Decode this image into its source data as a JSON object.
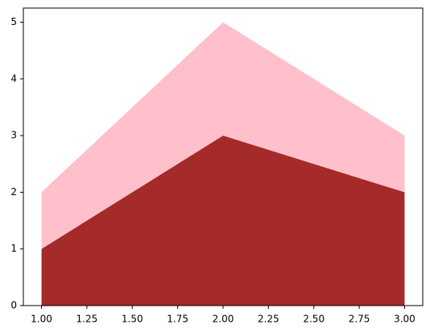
{
  "chart_data": {
    "type": "stackplot",
    "x": [
      1,
      2,
      3
    ],
    "series": [
      {
        "color": "#a52a2a",
        "values": [
          1,
          3,
          2
        ]
      },
      {
        "color": "#ffc0cb",
        "values": [
          1,
          2,
          1
        ]
      }
    ],
    "xlim": [
      0.9,
      3.1
    ],
    "xticks": [
      {
        "value": 1,
        "label": "1.00"
      },
      {
        "value": 1.25,
        "label": "1.25"
      },
      {
        "value": 1.5,
        "label": "1.50"
      },
      {
        "value": 1.75,
        "label": "1.75"
      },
      {
        "value": 2,
        "label": "2.00"
      },
      {
        "value": 2.25,
        "label": "2.25"
      },
      {
        "value": 2.5,
        "label": "2.50"
      },
      {
        "value": 2.75,
        "label": "2.75"
      },
      {
        "value": 3,
        "label": "3.00"
      }
    ],
    "ylim": [
      0,
      5.25
    ],
    "yticks": [
      0,
      1,
      2,
      3,
      4,
      5
    ],
    "grid": false
  }
}
